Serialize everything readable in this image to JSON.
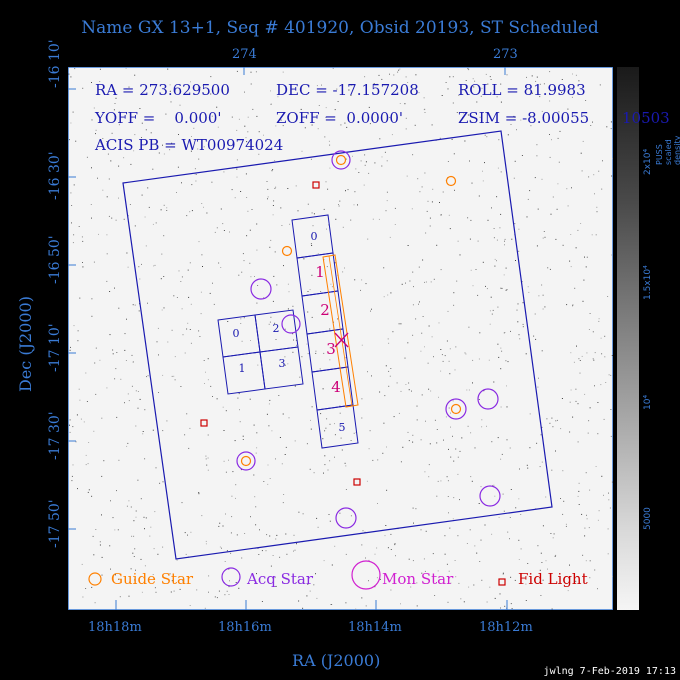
{
  "title": "Name GX 13+1, Seq # 401920, Obsid 20193, ST Scheduled",
  "info": {
    "ra": "RA = 273.629500",
    "dec": "DEC = -17.157208",
    "roll": "ROLL = 81.9983",
    "yoff": "YOFF =    0.000'",
    "zoff": "ZOFF =  0.0000'",
    "zsim": "ZSIM = -8.00055",
    "acis": "ACIS PB = WT00974024"
  },
  "top_ticks": [
    "274",
    "273"
  ],
  "dec_ticks": [
    "-16 10'",
    "-16 30'",
    "-16 50'",
    "-17 10'",
    "-17 30'",
    "-17 50'"
  ],
  "ra_ticks": [
    "18h18m",
    "18h16m",
    "18h14m",
    "18h12m"
  ],
  "dec_axis_label": "Dec (J2000)",
  "ra_axis_label": "RA (J2000)",
  "colorbar": {
    "title": "PUSS scaled density",
    "ticks": [
      "2x10⁴",
      "1.5x10⁴",
      "10⁴",
      "5000"
    ],
    "overflow_label": "10503"
  },
  "legend": {
    "guide": "Guide Star",
    "acq": "Acq Star",
    "mon": "Mon Star",
    "fid": "Fid Light"
  },
  "chips": {
    "acis_i": [
      "0",
      "2",
      "1",
      "3"
    ],
    "acis_s": [
      "0",
      "1",
      "2",
      "3",
      "4",
      "5"
    ]
  },
  "footer": "jwlng  7-Feb-2019 17:13",
  "colors": {
    "axis": "#3a7bd5",
    "frame": "#1a1ab0",
    "guide": "#ff8000",
    "acq": "#8a2be2",
    "mon": "#d020d0",
    "fid": "#cc0000",
    "chip_num": "#cc0077"
  }
}
